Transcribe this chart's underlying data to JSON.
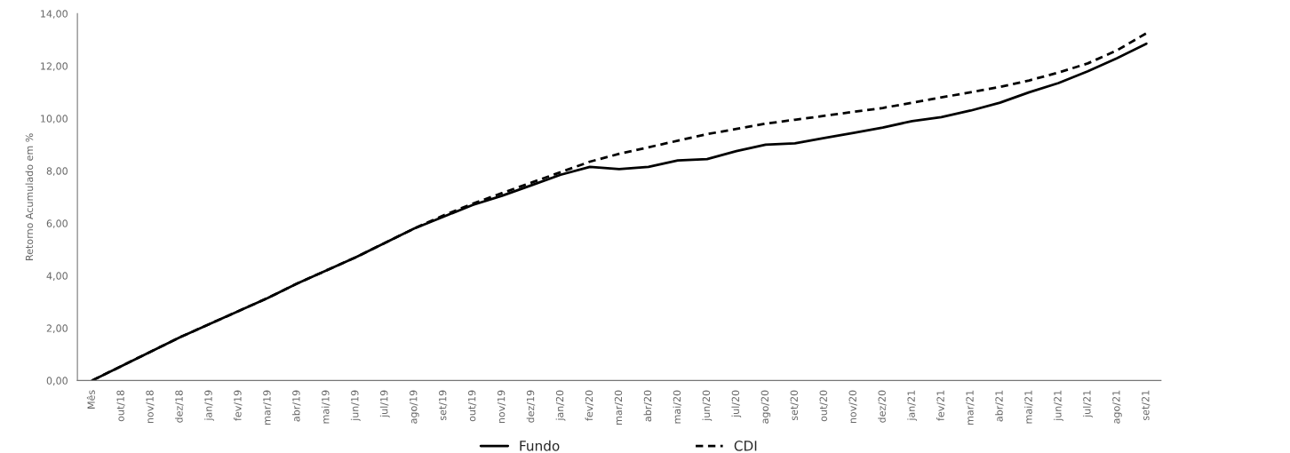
{
  "chart_data": {
    "type": "line",
    "ylabel": "Retorno Acumulado em %",
    "categories": [
      "Mês",
      "out/18",
      "nov/18",
      "dez/18",
      "jan/19",
      "fev/19",
      "mar/19",
      "abr/19",
      "mai/19",
      "jun/19",
      "jul/19",
      "ago/19",
      "set/19",
      "out/19",
      "nov/19",
      "dez/19",
      "jan/20",
      "fev/20",
      "mar/20",
      "abr/20",
      "mai/20",
      "jun/20",
      "jul/20",
      "ago/20",
      "set/20",
      "out/20",
      "nov/20",
      "dez/20",
      "jan/21",
      "fev/21",
      "mar/21",
      "abr/21",
      "mai/21",
      "jun/21",
      "jul/21",
      "ago/21",
      "set/21"
    ],
    "series": [
      {
        "name": "Fundo",
        "color": "#000000",
        "line_style": "solid",
        "values": [
          0.0,
          0.55,
          1.1,
          1.65,
          2.15,
          2.65,
          3.15,
          3.7,
          4.2,
          4.7,
          5.25,
          5.8,
          6.25,
          6.7,
          7.05,
          7.45,
          7.85,
          8.15,
          8.07,
          8.15,
          8.4,
          8.45,
          8.75,
          9.0,
          9.05,
          9.25,
          9.45,
          9.65,
          9.9,
          10.05,
          10.3,
          10.6,
          11.0,
          11.35,
          11.8,
          12.3,
          12.85
        ]
      },
      {
        "name": "CDI",
        "color": "#000000",
        "line_style": "dashed",
        "values": [
          0.0,
          0.55,
          1.1,
          1.65,
          2.15,
          2.65,
          3.15,
          3.7,
          4.2,
          4.7,
          5.25,
          5.8,
          6.3,
          6.75,
          7.15,
          7.55,
          7.95,
          8.35,
          8.65,
          8.9,
          9.15,
          9.4,
          9.6,
          9.8,
          9.95,
          10.1,
          10.25,
          10.4,
          10.6,
          10.8,
          11.0,
          11.2,
          11.45,
          11.75,
          12.1,
          12.6,
          13.25
        ]
      }
    ],
    "ylim": [
      0,
      14
    ],
    "yticks": [
      {
        "value": 0,
        "label": "0,00"
      },
      {
        "value": 2,
        "label": "2,00"
      },
      {
        "value": 4,
        "label": "4,00"
      },
      {
        "value": 6,
        "label": "6,00"
      },
      {
        "value": 8,
        "label": "8,00"
      },
      {
        "value": 10,
        "label": "10,00"
      },
      {
        "value": 12,
        "label": "12,00"
      },
      {
        "value": 14,
        "label": "14,00"
      }
    ],
    "grid": false,
    "legend": "bottom",
    "marker": "none"
  }
}
